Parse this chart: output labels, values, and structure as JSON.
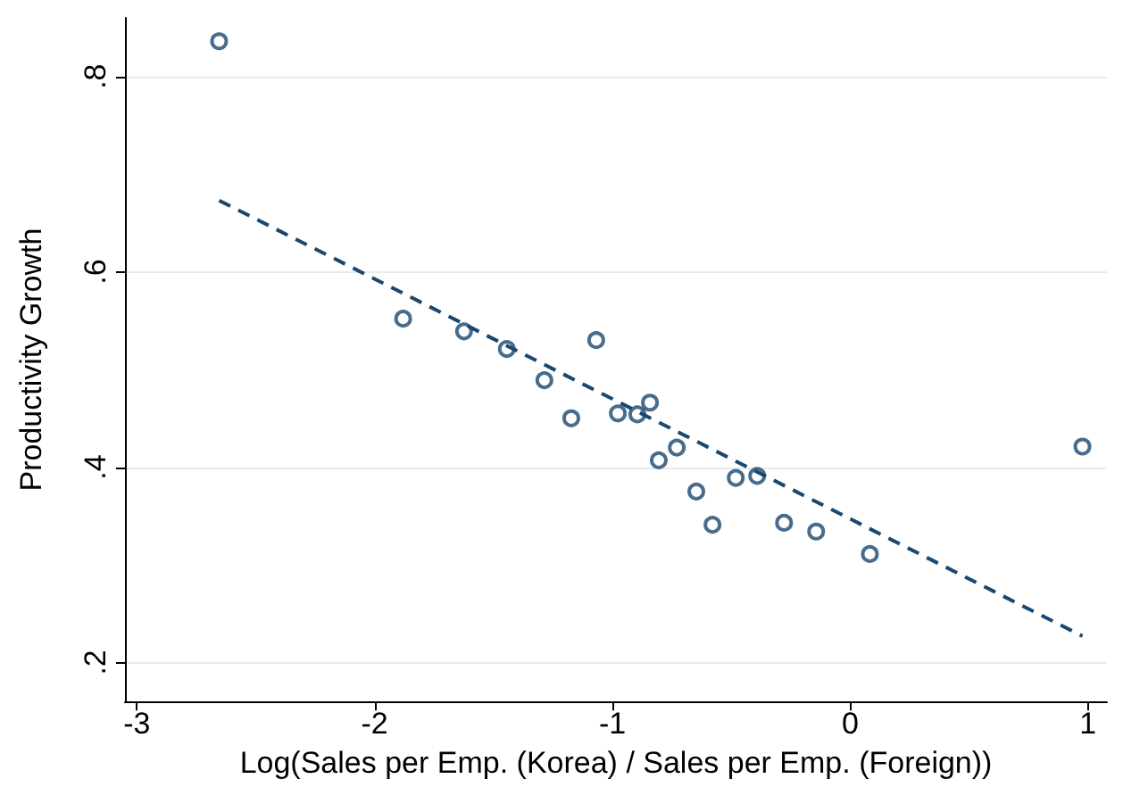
{
  "chart_data": {
    "type": "scatter",
    "xlabel": "Log(Sales per Emp. (Korea) / Sales per Emp. (Foreign))",
    "ylabel": "Productivity Growth",
    "xlim": [
      -3.05,
      1.08
    ],
    "ylim": [
      0.16,
      0.86
    ],
    "xticks": [
      -3,
      -2,
      -1,
      0,
      1
    ],
    "yticks": [
      {
        "value": 0.2,
        "label": ".2"
      },
      {
        "value": 0.4,
        "label": ".4"
      },
      {
        "value": 0.6,
        "label": ".6"
      },
      {
        "value": 0.8,
        "label": ".8"
      }
    ],
    "grid": "y",
    "marker": "circle",
    "series": [
      {
        "color": "#1a476f",
        "x": [
          -2.654,
          -1.88,
          -1.624,
          -1.444,
          -1.286,
          -1.173,
          -1.068,
          -0.977,
          -0.895,
          -0.842,
          -0.805,
          -0.729,
          -0.647,
          -0.579,
          -0.481,
          -0.391,
          -0.278,
          -0.143,
          0.083,
          0.977
        ],
        "values": [
          0.836,
          0.552,
          0.539,
          0.521,
          0.489,
          0.45,
          0.53,
          0.455,
          0.454,
          0.466,
          0.407,
          0.42,
          0.375,
          0.341,
          0.389,
          0.391,
          0.343,
          0.334,
          0.311,
          0.421
        ]
      },
      {
        "type": "line",
        "color": "#1a476f",
        "line_style": "dashed",
        "marker": "none",
        "x": [
          -2.654,
          0.977
        ],
        "values": [
          0.673,
          0.227
        ]
      }
    ]
  }
}
